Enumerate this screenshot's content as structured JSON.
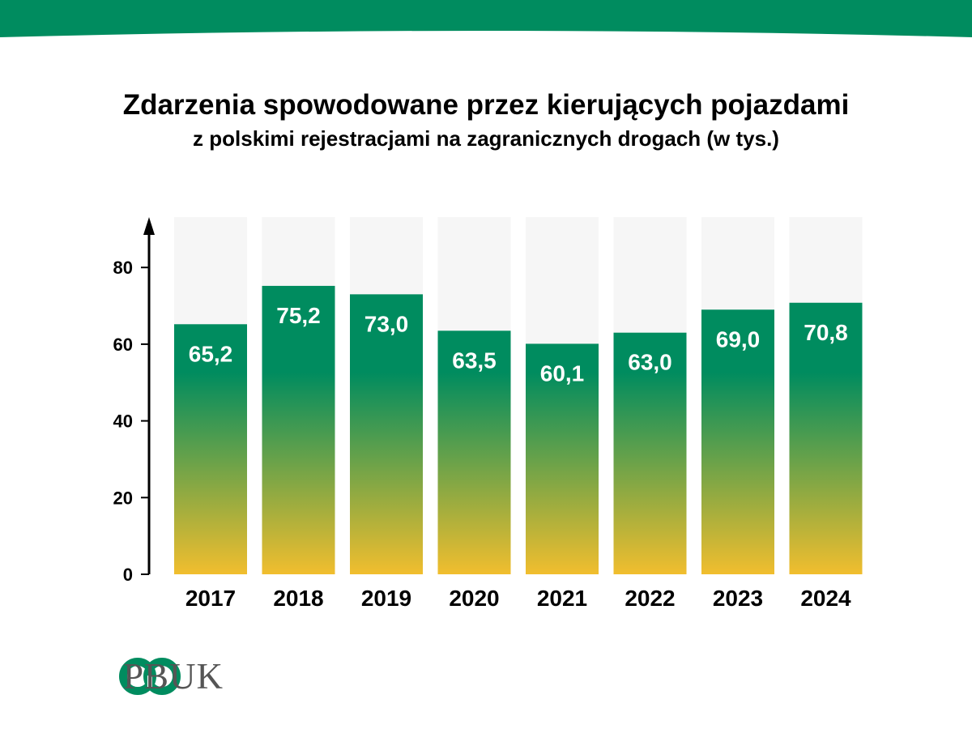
{
  "colors": {
    "brand": "#008C5F",
    "bar_top": "#008C5F",
    "bar_bottom": "#F2BE2E",
    "bar_background": "#F6F6F6",
    "axis": "#000000",
    "logo_text": "#555555"
  },
  "logo": {
    "text": "PBUK",
    "icon": "pbuk-rings-icon"
  },
  "chart_data": {
    "type": "bar",
    "title": "Zdarzenia spowodowane przez kierujących pojazdami",
    "subtitle": "z polskimi rejestracjami na zagranicznych drogach (w tys.)",
    "categories": [
      "2017",
      "2018",
      "2019",
      "2020",
      "2021",
      "2022",
      "2023",
      "2024"
    ],
    "values": [
      65.2,
      75.2,
      73.0,
      63.5,
      60.1,
      63.0,
      69.0,
      70.8
    ],
    "value_labels": [
      "65,2",
      "75,2",
      "73,0",
      "63,5",
      "60,1",
      "63,0",
      "69,0",
      "70,8"
    ],
    "y_ticks": [
      "0",
      "20",
      "40",
      "60",
      "80"
    ],
    "y_tick_values": [
      0,
      20,
      40,
      60,
      80
    ],
    "ylim": [
      0,
      93
    ],
    "grid": false,
    "legend": "none"
  }
}
